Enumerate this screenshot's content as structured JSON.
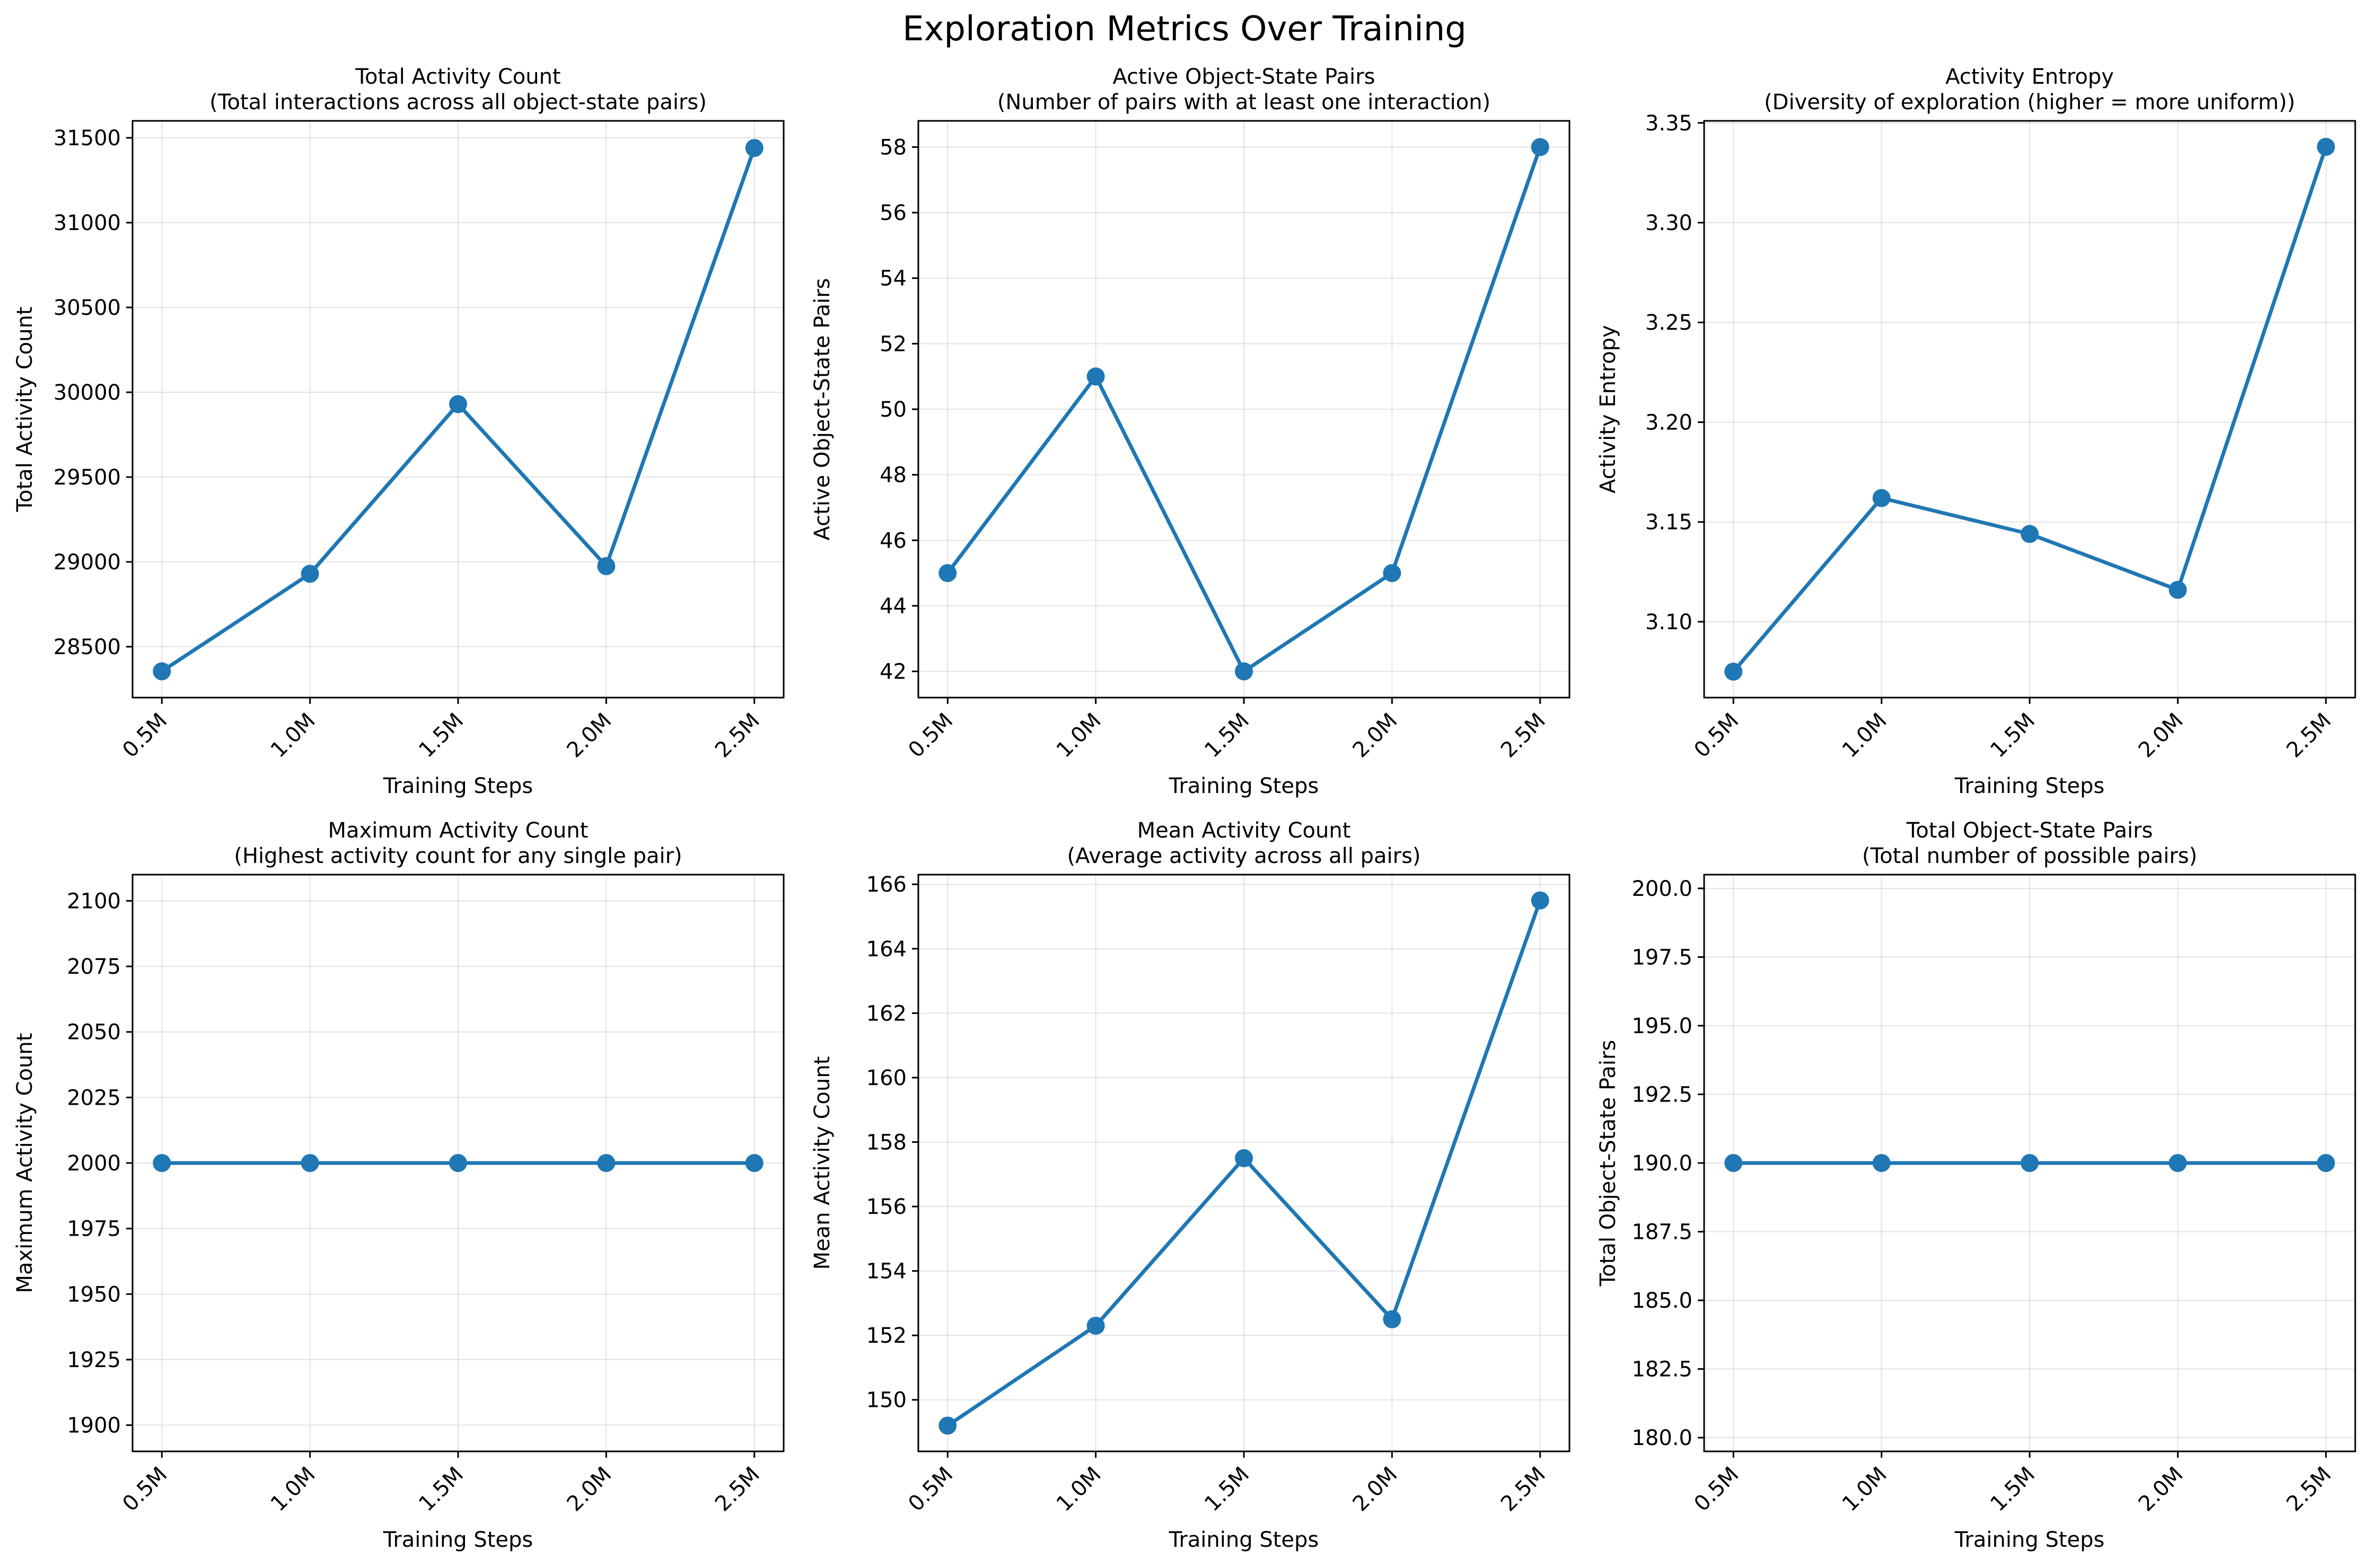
{
  "figure": {
    "title": "Exploration Metrics Over Training",
    "line_color": "#1f77b4"
  },
  "chart_data": [
    {
      "type": "line",
      "title": "Total Activity Count",
      "subtitle": "(Total interactions across all object-state pairs)",
      "xlabel": "Training Steps",
      "ylabel": "Total Activity Count",
      "categories": [
        "0.5M",
        "1.0M",
        "1.5M",
        "2.0M",
        "2.5M"
      ],
      "values": [
        28355,
        28930,
        29930,
        28975,
        31440
      ],
      "ylim": [
        28200,
        31600
      ],
      "yticks": [
        28500,
        29000,
        29500,
        30000,
        30500,
        31000,
        31500
      ],
      "ytick_labels": [
        "28500",
        "29000",
        "29500",
        "30000",
        "30500",
        "31000",
        "31500"
      ],
      "grid": true
    },
    {
      "type": "line",
      "title": "Active Object-State Pairs",
      "subtitle": "(Number of pairs with at least one interaction)",
      "xlabel": "Training Steps",
      "ylabel": "Active Object-State Pairs",
      "categories": [
        "0.5M",
        "1.0M",
        "1.5M",
        "2.0M",
        "2.5M"
      ],
      "values": [
        45,
        51,
        42,
        45,
        58
      ],
      "ylim": [
        41.2,
        58.8
      ],
      "yticks": [
        42,
        44,
        46,
        48,
        50,
        52,
        54,
        56,
        58
      ],
      "ytick_labels": [
        "42",
        "44",
        "46",
        "48",
        "50",
        "52",
        "54",
        "56",
        "58"
      ],
      "grid": true
    },
    {
      "type": "line",
      "title": "Activity Entropy",
      "subtitle": "(Diversity of exploration (higher = more uniform))",
      "xlabel": "Training Steps",
      "ylabel": "Activity Entropy",
      "categories": [
        "0.5M",
        "1.0M",
        "1.5M",
        "2.0M",
        "2.5M"
      ],
      "values": [
        3.075,
        3.162,
        3.144,
        3.116,
        3.338
      ],
      "ylim": [
        3.062,
        3.351
      ],
      "yticks": [
        3.1,
        3.15,
        3.2,
        3.25,
        3.3,
        3.35
      ],
      "ytick_labels": [
        "3.10",
        "3.15",
        "3.20",
        "3.25",
        "3.30",
        "3.35"
      ],
      "grid": true
    },
    {
      "type": "line",
      "title": "Maximum Activity Count",
      "subtitle": "(Highest activity count for any single pair)",
      "xlabel": "Training Steps",
      "ylabel": "Maximum Activity Count",
      "categories": [
        "0.5M",
        "1.0M",
        "1.5M",
        "2.0M",
        "2.5M"
      ],
      "values": [
        2000,
        2000,
        2000,
        2000,
        2000
      ],
      "ylim": [
        1890,
        2110
      ],
      "yticks": [
        1900,
        1925,
        1950,
        1975,
        2000,
        2025,
        2050,
        2075,
        2100
      ],
      "ytick_labels": [
        "1900",
        "1925",
        "1950",
        "1975",
        "2000",
        "2025",
        "2050",
        "2075",
        "2100"
      ],
      "grid": true
    },
    {
      "type": "line",
      "title": "Mean Activity Count",
      "subtitle": "(Average activity across all pairs)",
      "xlabel": "Training Steps",
      "ylabel": "Mean Activity Count",
      "categories": [
        "0.5M",
        "1.0M",
        "1.5M",
        "2.0M",
        "2.5M"
      ],
      "values": [
        149.2,
        152.3,
        157.5,
        152.5,
        165.5
      ],
      "ylim": [
        148.4,
        166.3
      ],
      "yticks": [
        150,
        152,
        154,
        156,
        158,
        160,
        162,
        164,
        166
      ],
      "ytick_labels": [
        "150",
        "152",
        "154",
        "156",
        "158",
        "160",
        "162",
        "164",
        "166"
      ],
      "grid": true
    },
    {
      "type": "line",
      "title": "Total Object-State Pairs",
      "subtitle": "(Total number of possible pairs)",
      "xlabel": "Training Steps",
      "ylabel": "Total Object-State Pairs",
      "categories": [
        "0.5M",
        "1.0M",
        "1.5M",
        "2.0M",
        "2.5M"
      ],
      "values": [
        190,
        190,
        190,
        190,
        190
      ],
      "ylim": [
        179.5,
        200.5
      ],
      "yticks": [
        180,
        182.5,
        185,
        187.5,
        190,
        192.5,
        195,
        197.5,
        200
      ],
      "ytick_labels": [
        "180.0",
        "182.5",
        "185.0",
        "187.5",
        "190.0",
        "192.5",
        "195.0",
        "197.5",
        "200.0"
      ],
      "grid": true
    }
  ]
}
